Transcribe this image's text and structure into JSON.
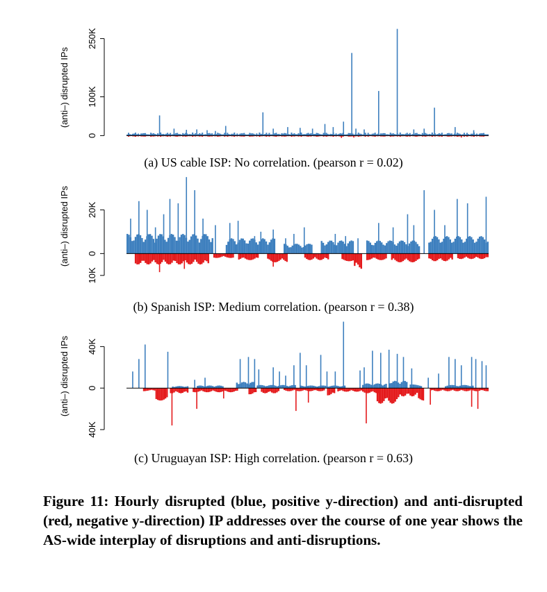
{
  "colors": {
    "disrupted": "#3d7fbe",
    "anti_disrupted": "#e41a1c",
    "axis": "#000000"
  },
  "chart_data": [
    {
      "type": "bar",
      "caption": "(a) US cable ISP: No correlation. (pearson r = 0.02)",
      "ylabel": "(anti–) disrupted IPs",
      "ytick_labels": [
        "0",
        "100K",
        "250K"
      ],
      "yticks": [
        0,
        100000,
        250000
      ],
      "ylim": [
        -10000,
        260000
      ],
      "x_range": [
        0,
        8760
      ],
      "x_unit": "hour of year",
      "series": [
        {
          "baseline": [
            8000,
            6000
          ],
          "spikes": [
            [
              800,
              52000
            ],
            [
              1150,
              18000
            ],
            [
              1450,
              15000
            ],
            [
              1700,
              16000
            ],
            [
              1950,
              14000
            ],
            [
              2150,
              12000
            ],
            [
              2400,
              25000
            ],
            [
              3300,
              60000
            ],
            [
              3550,
              18000
            ],
            [
              3900,
              22000
            ],
            [
              4200,
              20000
            ],
            [
              4500,
              18000
            ],
            [
              4800,
              30000
            ],
            [
              5000,
              22000
            ],
            [
              5250,
              36000
            ],
            [
              5450,
              213000
            ],
            [
              5550,
              18000
            ],
            [
              5750,
              16000
            ],
            [
              6100,
              115000
            ],
            [
              6550,
              275000
            ],
            [
              6950,
              16000
            ],
            [
              7200,
              18000
            ],
            [
              7450,
              72000
            ],
            [
              7950,
              22000
            ],
            [
              8400,
              14000
            ]
          ]
        },
        {
          "baseline": [
            3000,
            2000
          ],
          "spikes": [
            [
              5200,
              6000
            ],
            [
              5500,
              5000
            ],
            [
              8100,
              5000
            ]
          ]
        }
      ]
    },
    {
      "type": "bar",
      "caption": "(b) Spanish ISP: Medium correlation. (pearson r = 0.38)",
      "ylabel": "(anti–) disrupted IPs",
      "ytick_labels": [
        "10K",
        "0",
        "20K"
      ],
      "yticks": [
        -10000,
        0,
        20000
      ],
      "ylim": [
        -11000,
        36000
      ],
      "x_range": [
        0,
        8760
      ],
      "x_unit": "hour of year",
      "series": [
        {
          "blocks": [
            [
              0,
              2100,
              9000
            ],
            [
              2400,
              3600,
              7000
            ],
            [
              3800,
              4500,
              4500
            ],
            [
              4700,
              5500,
              6000
            ],
            [
              5800,
              7100,
              6000
            ],
            [
              7300,
              8760,
              8000
            ]
          ],
          "spikes": [
            [
              100,
              16000
            ],
            [
              300,
              24000
            ],
            [
              500,
              20000
            ],
            [
              700,
              12000
            ],
            [
              900,
              18000
            ],
            [
              1050,
              25000
            ],
            [
              1250,
              23000
            ],
            [
              1450,
              35000
            ],
            [
              1650,
              29000
            ],
            [
              1850,
              16000
            ],
            [
              2150,
              13000
            ],
            [
              2500,
              14000
            ],
            [
              2700,
              15000
            ],
            [
              3100,
              8000
            ],
            [
              3250,
              10000
            ],
            [
              3550,
              11000
            ],
            [
              3850,
              7000
            ],
            [
              4050,
              9000
            ],
            [
              4300,
              12000
            ],
            [
              5050,
              9000
            ],
            [
              5300,
              8000
            ],
            [
              5600,
              7000
            ],
            [
              6100,
              14000
            ],
            [
              6450,
              12000
            ],
            [
              6800,
              18000
            ],
            [
              6950,
              13000
            ],
            [
              7200,
              29000
            ],
            [
              7450,
              20000
            ],
            [
              7700,
              13000
            ],
            [
              8000,
              25000
            ],
            [
              8250,
              23000
            ],
            [
              8700,
              26000
            ]
          ]
        },
        {
          "blocks": [
            [
              200,
              2000,
              5000
            ],
            [
              2100,
              2600,
              2000
            ],
            [
              2700,
              3200,
              3000
            ],
            [
              3400,
              3900,
              4000
            ],
            [
              4300,
              4900,
              3000
            ],
            [
              5200,
              5500,
              3500
            ],
            [
              5500,
              5700,
              7000
            ],
            [
              5800,
              6300,
              3000
            ],
            [
              6400,
              7100,
              4000
            ],
            [
              7300,
              7900,
              3500
            ],
            [
              8000,
              8760,
              2500
            ]
          ],
          "spikes": [
            [
              800,
              8500
            ],
            [
              1400,
              7000
            ],
            [
              3550,
              6000
            ]
          ]
        }
      ]
    },
    {
      "type": "bar",
      "caption": "(c) Uruguayan ISP: High correlation. (pearson r = 0.63)",
      "ylabel": "(anti–) disrupted IPs",
      "ytick_labels": [
        "40K",
        "0",
        "40K"
      ],
      "yticks": [
        -40000,
        0,
        40000
      ],
      "ylim": [
        -42000,
        65000
      ],
      "x_range": [
        0,
        8760
      ],
      "x_unit": "hour of year",
      "series": [
        {
          "blocks": [
            [
              1100,
              1500,
              2000
            ],
            [
              1700,
              2350,
              2500
            ],
            [
              2650,
              3100,
              6000
            ],
            [
              3150,
              4100,
              3000
            ],
            [
              4200,
              5300,
              2500
            ],
            [
              5700,
              6300,
              4500
            ],
            [
              6350,
              6800,
              7000
            ],
            [
              6850,
              7150,
              3500
            ],
            [
              7700,
              8400,
              3000
            ]
          ],
          "spikes": [
            [
              150,
              16000
            ],
            [
              300,
              28000
            ],
            [
              450,
              42000
            ],
            [
              1000,
              35000
            ],
            [
              1650,
              8000
            ],
            [
              1900,
              10000
            ],
            [
              2750,
              28000
            ],
            [
              2950,
              30000
            ],
            [
              3100,
              28000
            ],
            [
              3200,
              18000
            ],
            [
              3550,
              20000
            ],
            [
              3700,
              16000
            ],
            [
              3850,
              12000
            ],
            [
              4050,
              22000
            ],
            [
              4200,
              34000
            ],
            [
              4350,
              22000
            ],
            [
              4700,
              32000
            ],
            [
              4850,
              16000
            ],
            [
              5050,
              16000
            ],
            [
              5250,
              64000
            ],
            [
              5650,
              17000
            ],
            [
              5750,
              20000
            ],
            [
              5950,
              36000
            ],
            [
              6150,
              34000
            ],
            [
              6350,
              37000
            ],
            [
              6550,
              33000
            ],
            [
              6700,
              30000
            ],
            [
              6900,
              19000
            ],
            [
              7300,
              10000
            ],
            [
              7550,
              14000
            ],
            [
              7800,
              30000
            ],
            [
              7950,
              28000
            ],
            [
              8100,
              22000
            ],
            [
              8350,
              30000
            ],
            [
              8450,
              28000
            ],
            [
              8600,
              26000
            ],
            [
              8700,
              22000
            ]
          ]
        },
        {
          "blocks": [
            [
              400,
              700,
              3000
            ],
            [
              700,
              1000,
              12000
            ],
            [
              1050,
              1500,
              5000
            ],
            [
              1600,
              2700,
              4000
            ],
            [
              2950,
              3150,
              6000
            ],
            [
              3250,
              3700,
              5000
            ],
            [
              3800,
              4800,
              3000
            ],
            [
              4850,
              5050,
              7000
            ],
            [
              5100,
              5700,
              3500
            ],
            [
              5700,
              6100,
              5000
            ],
            [
              6050,
              6600,
              15000
            ],
            [
              6600,
              7050,
              8000
            ],
            [
              7050,
              7200,
              12000
            ],
            [
              7350,
              7750,
              3000
            ],
            [
              7750,
              8200,
              3000
            ],
            [
              8200,
              8760,
              3000
            ]
          ],
          "spikes": [
            [
              1100,
              36000
            ],
            [
              1700,
              20000
            ],
            [
              2350,
              10000
            ],
            [
              4100,
              22000
            ],
            [
              4400,
              14000
            ],
            [
              5800,
              34000
            ],
            [
              7350,
              16000
            ],
            [
              8350,
              18000
            ],
            [
              8500,
              20000
            ]
          ]
        }
      ]
    }
  ],
  "figure_caption": "Figure 11: Hourly disrupted (blue, positive y-direction) and anti-disrupted (red, negative y-direction) IP addresses over the course of one year shows the AS-wide interplay of disruptions and anti-disruptions."
}
